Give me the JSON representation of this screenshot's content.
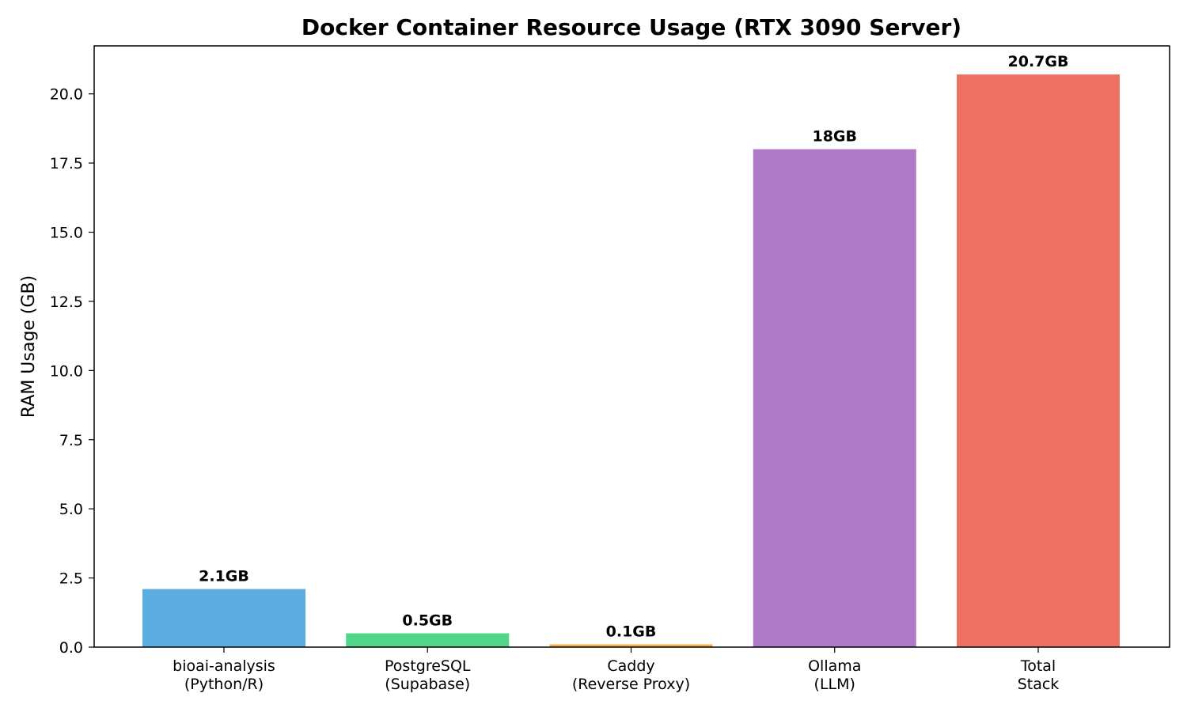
{
  "chart_data": {
    "type": "bar",
    "title": "Docker Container Resource Usage (RTX 3090 Server)",
    "xlabel": "",
    "ylabel": "RAM Usage (GB)",
    "ylim": [
      0,
      21.735
    ],
    "yticks": [
      "0.0",
      "2.5",
      "5.0",
      "7.5",
      "10.0",
      "12.5",
      "15.0",
      "17.5",
      "20.0"
    ],
    "ytick_values": [
      0,
      2.5,
      5,
      7.5,
      10,
      12.5,
      15,
      17.5,
      20
    ],
    "categories": [
      [
        "bioai-analysis",
        "(Python/R)"
      ],
      [
        "PostgreSQL",
        "(Supabase)"
      ],
      [
        "Caddy",
        "(Reverse Proxy)"
      ],
      [
        "Ollama",
        "(LLM)"
      ],
      [
        "Total",
        "Stack"
      ]
    ],
    "values": [
      2.1,
      0.5,
      0.1,
      18,
      20.7
    ],
    "data_labels": [
      "2.1GB",
      "0.5GB",
      "0.1GB",
      "18GB",
      "20.7GB"
    ],
    "colors": [
      "#5dade2",
      "#52d68a",
      "#f5b041",
      "#af7ac5",
      "#ec7063"
    ],
    "grid": false,
    "legend": "none"
  }
}
